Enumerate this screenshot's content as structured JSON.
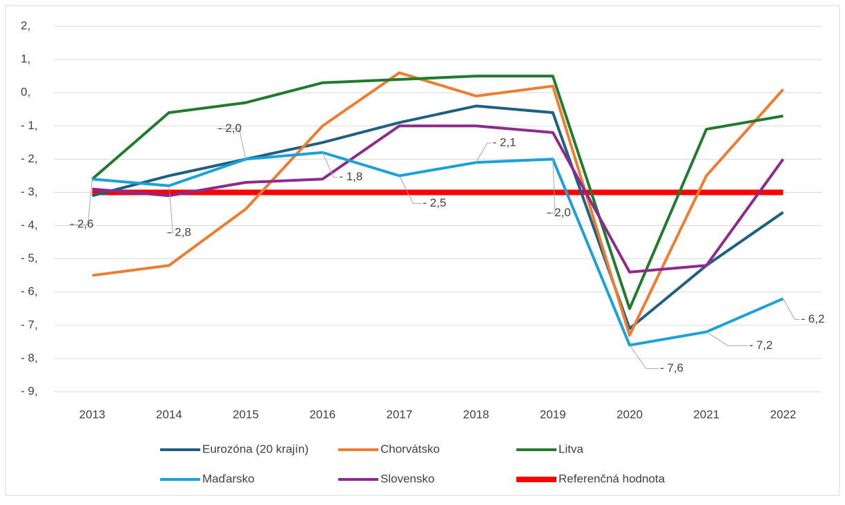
{
  "chart_data": {
    "type": "line",
    "categories": [
      "2013",
      "2014",
      "2015",
      "2016",
      "2017",
      "2018",
      "2019",
      "2020",
      "2021",
      "2022"
    ],
    "series": [
      {
        "name": "Eurozóna (20 krajín)",
        "color": "#1f5f82",
        "values": [
          -3.1,
          -2.5,
          -2.0,
          -1.5,
          -0.9,
          -0.4,
          -0.6,
          -7.1,
          -5.2,
          -3.6
        ]
      },
      {
        "name": "Chorvátsko",
        "color": "#ed7d31",
        "values": [
          -5.5,
          -5.2,
          -3.5,
          -1.0,
          0.6,
          -0.1,
          0.2,
          -7.3,
          -2.5,
          0.1
        ]
      },
      {
        "name": "Litva",
        "color": "#217a2e",
        "values": [
          -2.6,
          -0.6,
          -0.3,
          0.3,
          0.4,
          0.5,
          0.5,
          -6.5,
          -1.1,
          -0.7
        ]
      },
      {
        "name": "Maďarsko",
        "color": "#1ba1d9",
        "values": [
          -2.6,
          -2.8,
          -2.0,
          -1.8,
          -2.5,
          -2.1,
          -2.0,
          -7.6,
          -7.2,
          -6.2
        ],
        "value_labels": [
          "- 2,6",
          "- 2,8",
          "- 2,0",
          "- 1,8",
          "- 2,5",
          "- 2,1",
          "- 2,0",
          "- 7,6",
          "- 7,2",
          "- 6,2"
        ]
      },
      {
        "name": "Slovensko",
        "color": "#8e2a8e",
        "values": [
          -2.9,
          -3.1,
          -2.7,
          -2.6,
          -1.0,
          -1.0,
          -1.2,
          -5.4,
          -5.2,
          -2.0
        ]
      },
      {
        "name": "Referenčná hodnota",
        "color": "#ff0000",
        "values": [
          -3,
          -3,
          -3,
          -3,
          -3,
          -3,
          -3,
          -3,
          -3,
          -3
        ]
      }
    ],
    "ylim": [
      -9,
      2
    ],
    "yticks": [
      {
        "value": 2,
        "label": "2,"
      },
      {
        "value": 1,
        "label": "1,"
      },
      {
        "value": 0,
        "label": "0,"
      },
      {
        "value": -1,
        "label": "- 1,"
      },
      {
        "value": -2,
        "label": "- 2,"
      },
      {
        "value": -3,
        "label": "- 3,"
      },
      {
        "value": -4,
        "label": "- 4,"
      },
      {
        "value": -5,
        "label": "- 5,"
      },
      {
        "value": -6,
        "label": "- 6,"
      },
      {
        "value": -7,
        "label": "- 7,"
      },
      {
        "value": -8,
        "label": "- 8,"
      },
      {
        "value": -9,
        "label": "- 9,"
      }
    ],
    "grid": true
  }
}
